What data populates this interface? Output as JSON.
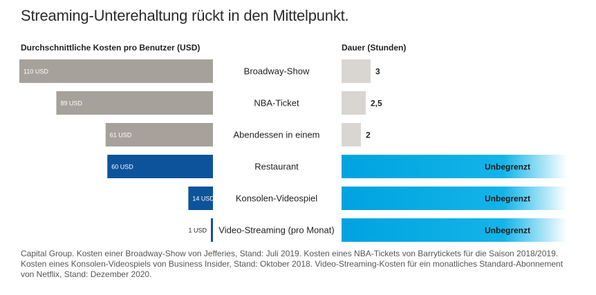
{
  "title": "Streaming-Unterehaltung rückt in den Mittelpunkt.",
  "headers": {
    "cost": "Durchschnittliche Kosten pro Benutzer (USD)",
    "duration": "Dauer (Stunden)"
  },
  "chart_data": {
    "type": "bar",
    "title": "Streaming-Unterehaltung rückt in den Mittelpunkt.",
    "categories": [
      "Broadway-Show",
      "NBA-Ticket",
      "Abendessen in einem",
      "Restaurant",
      "Konsolen-Videospiel",
      "Video-Streaming (pro Monat)"
    ],
    "series": [
      {
        "name": "Durchschnittliche Kosten pro Benutzer (USD)",
        "values": [
          110,
          89,
          61,
          60,
          14,
          1
        ],
        "labels": [
          "110 USD",
          "89 USD",
          "61 USD",
          "60 USD",
          "14 USD",
          "1 USD"
        ],
        "colors": [
          "#a6a19b",
          "#a6a19b",
          "#a6a19b",
          "#0d539b",
          "#0d539b",
          "#0d539b"
        ]
      },
      {
        "name": "Dauer (Stunden)",
        "values": [
          3,
          2.5,
          2,
          null,
          null,
          null
        ],
        "labels": [
          "3",
          "2,5",
          "2",
          "Unbegrenzt",
          "Unbegrenzt",
          "Unbegrenzt"
        ],
        "colors": [
          "#d9d6d2",
          "#d9d6d2",
          "#d9d6d2",
          "#00a3e0",
          "#00a3e0",
          "#00a3e0"
        ]
      }
    ],
    "xlim_cost": [
      0,
      110
    ],
    "xlim_duration": [
      0,
      3
    ],
    "legend": "none",
    "grid": false
  },
  "source": "Capital Group. Kosten einer Broadway-Show von Jefferies, Stand: Juli 2019. Kosten eines NBA-Tickets von Barrytickets für die Saison 2018/2019. Kosten eines Konsolen-Videospiels von Business Insider, Stand: Oktober 2018. Video-Streaming-Kosten für ein monatliches Standard-Abonnement von Netflix, Stand: Dezember 2020."
}
